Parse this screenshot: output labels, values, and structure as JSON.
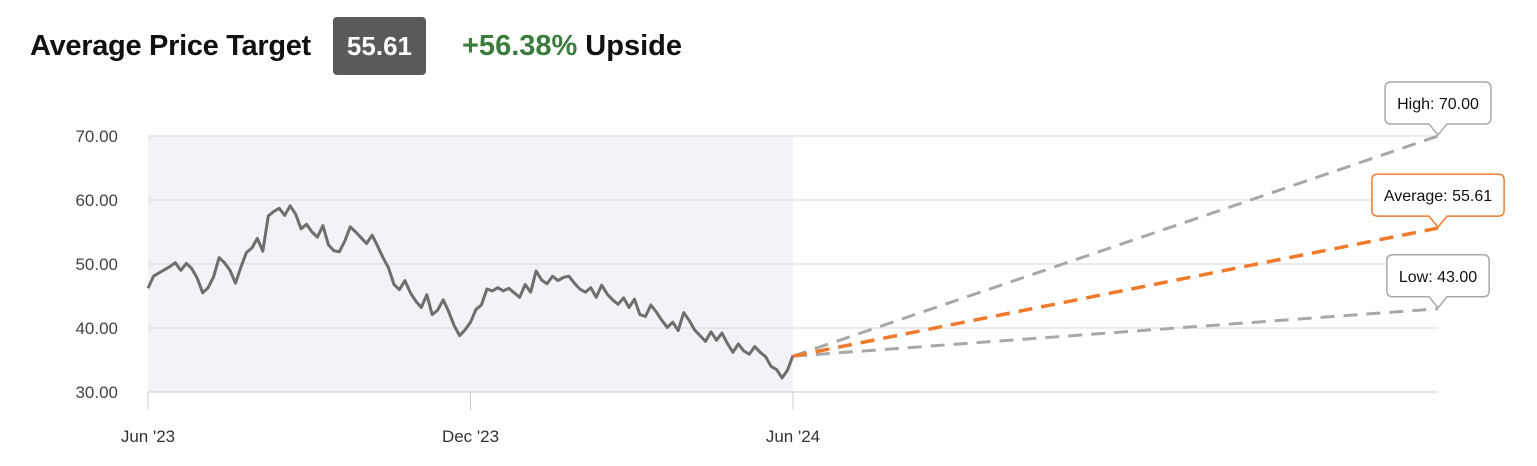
{
  "header": {
    "title": "Average Price Target",
    "target_badge": "55.61",
    "upside_percent": "+56.38%",
    "upside_word": "Upside"
  },
  "colors": {
    "upside_green": "#3c7d3f",
    "history_line": "#6e6e6e",
    "history_background": "#f2f3f7",
    "target_high_low": "#a8a8a8",
    "target_average": "#f07a2c",
    "grid": "#d9d9d9"
  },
  "chart_data": {
    "type": "line",
    "ylim": [
      30,
      70
    ],
    "y_ticks": [
      "70.00",
      "60.00",
      "50.00",
      "40.00",
      "30.00"
    ],
    "x_ticks": [
      "Jun '23",
      "Dec '23",
      "Jun '24"
    ],
    "grid": true,
    "history_shading": "behind price history",
    "price_history": [
      46.2,
      48.1,
      48.6,
      49.1,
      49.6,
      50.2,
      49.0,
      50.1,
      49.3,
      47.8,
      45.5,
      46.3,
      48.0,
      51.0,
      50.2,
      49.0,
      47.0,
      49.5,
      51.8,
      52.5,
      54.0,
      52.0,
      57.5,
      58.2,
      58.7,
      57.6,
      59.1,
      57.8,
      55.5,
      56.2,
      55.0,
      54.2,
      56.0,
      53.0,
      52.1,
      51.9,
      53.6,
      55.8,
      55.0,
      54.1,
      53.2,
      54.5,
      52.8,
      51.0,
      49.4,
      46.8,
      46.0,
      47.4,
      45.5,
      44.2,
      43.2,
      45.2,
      42.1,
      42.8,
      44.4,
      42.6,
      40.4,
      38.8,
      39.7,
      40.9,
      42.9,
      43.6,
      46.1,
      45.8,
      46.3,
      45.8,
      46.2,
      45.5,
      44.8,
      46.8,
      45.6,
      48.9,
      47.5,
      46.9,
      48.1,
      47.4,
      47.9,
      48.1,
      47.0,
      46.1,
      45.6,
      46.3,
      44.8,
      46.7,
      45.3,
      44.4,
      43.7,
      44.7,
      43.2,
      44.5,
      42.1,
      41.8,
      43.6,
      42.5,
      41.2,
      40.1,
      40.9,
      39.6,
      42.4,
      41.2,
      39.7,
      38.8,
      37.9,
      39.4,
      38.1,
      39.2,
      37.6,
      36.2,
      37.5,
      36.4,
      35.9,
      37.1,
      36.2,
      35.5,
      34.0,
      33.5,
      32.2,
      33.4,
      35.7
    ],
    "targets": {
      "start_price": 35.6,
      "start_label": "Jun '24",
      "high": {
        "label": "High: 70.00",
        "value": 70.0
      },
      "average": {
        "label": "Average: 55.61",
        "value": 55.61
      },
      "low": {
        "label": "Low: 43.00",
        "value": 43.0
      }
    }
  }
}
